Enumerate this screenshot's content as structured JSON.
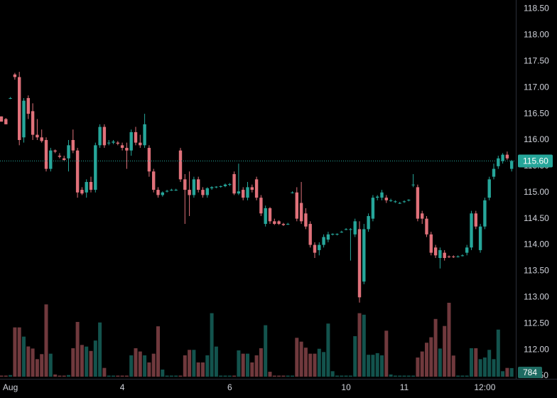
{
  "chart_data": {
    "type": "candlestick",
    "categories": [
      null,
      null,
      "Aug",
      null,
      null,
      null,
      null,
      null,
      null,
      null,
      null,
      null,
      null,
      null,
      null,
      null,
      null,
      null,
      null,
      null,
      null,
      null,
      null,
      null,
      null,
      null,
      null,
      "4",
      null,
      null,
      null,
      null,
      null,
      null,
      null,
      null,
      null,
      null,
      null,
      null,
      null,
      null,
      null,
      null,
      null,
      null,
      null,
      null,
      null,
      null,
      null,
      "6",
      null,
      null,
      null,
      null,
      null,
      null,
      null,
      null,
      null,
      null,
      null,
      null,
      null,
      null,
      null,
      null,
      null,
      null,
      null,
      null,
      null,
      null,
      null,
      null,
      null,
      "10",
      null,
      null,
      null,
      null,
      null,
      null,
      null,
      null,
      null,
      null,
      null,
      null,
      "11",
      null,
      null,
      null,
      null,
      null,
      null,
      null,
      null,
      null,
      null,
      null,
      null,
      null,
      null,
      null,
      null,
      null,
      "12:00",
      null,
      null,
      null,
      null,
      null,
      null
    ],
    "open": [
      116.45,
      116.4,
      116.8,
      117.25,
      117.2,
      116.05,
      116.8,
      116.55,
      116.1,
      116.05,
      116.0,
      115.45,
      115.8,
      115.7,
      115.65,
      115.65,
      116.0,
      115.8,
      115.05,
      115.0,
      115.2,
      115.05,
      115.9,
      116.25,
      115.95,
      115.95,
      115.95,
      115.9,
      115.85,
      115.8,
      116.15,
      115.95,
      115.9,
      115.85,
      115.4,
      115.05,
      114.95,
      115.02,
      115.05,
      115.05,
      115.8,
      115.25,
      115.05,
      114.95,
      115.25,
      115.05,
      114.95,
      115.08,
      115.1,
      115.11,
      115.12,
      115.15,
      115.35,
      114.98,
      115.05,
      114.9,
      115.1,
      115.25,
      114.9,
      114.4,
      114.7,
      114.45,
      114.45,
      114.4,
      114.4,
      115.0,
      115.0,
      114.8,
      114.6,
      114.4,
      114.0,
      113.9,
      114.0,
      114.1,
      114.2,
      114.2,
      114.25,
      114.3,
      114.3,
      114.2,
      114.3,
      113.3,
      114.3,
      114.5,
      114.9,
      114.9,
      114.9,
      114.85,
      114.82,
      114.8,
      114.82,
      114.85,
      115.15,
      115.1,
      114.6,
      114.5,
      114.2,
      113.95,
      113.75,
      113.85,
      113.78,
      113.78,
      113.78,
      113.8,
      113.85,
      113.95,
      114.6,
      113.9,
      114.35,
      114.9,
      115.3,
      115.5,
      115.6,
      115.72,
      115.45
    ],
    "high": [
      116.45,
      116.42,
      116.82,
      117.28,
      117.3,
      116.8,
      116.85,
      116.7,
      116.4,
      116.2,
      116.05,
      115.85,
      115.82,
      115.75,
      115.7,
      116.0,
      116.2,
      115.85,
      115.1,
      115.25,
      115.3,
      115.95,
      116.3,
      116.3,
      116.0,
      116.0,
      115.98,
      115.95,
      115.95,
      116.2,
      116.25,
      116.1,
      116.5,
      115.9,
      115.45,
      115.1,
      115.02,
      115.05,
      115.07,
      115.07,
      115.85,
      115.35,
      115.4,
      115.3,
      115.3,
      115.1,
      115.1,
      115.12,
      115.12,
      115.13,
      115.17,
      115.18,
      115.4,
      115.55,
      115.1,
      115.2,
      115.15,
      115.3,
      114.95,
      114.75,
      114.72,
      114.5,
      114.47,
      114.42,
      114.42,
      115.02,
      115.1,
      115.2,
      114.7,
      114.45,
      114.05,
      114.05,
      114.2,
      114.25,
      114.22,
      114.22,
      114.27,
      114.32,
      114.32,
      114.5,
      114.45,
      114.4,
      114.6,
      114.95,
      114.95,
      115.05,
      114.95,
      114.88,
      114.85,
      114.82,
      114.85,
      114.87,
      115.35,
      115.15,
      114.65,
      114.55,
      114.25,
      114.0,
      113.95,
      113.9,
      113.8,
      113.8,
      113.8,
      113.82,
      114.0,
      114.65,
      114.65,
      114.4,
      114.9,
      115.3,
      115.55,
      115.7,
      115.75,
      115.78,
      115.62
    ],
    "low": [
      116.35,
      116.3,
      116.78,
      117.15,
      115.9,
      115.95,
      116.4,
      116.0,
      116.0,
      115.95,
      115.4,
      115.4,
      115.75,
      115.65,
      115.6,
      115.4,
      115.75,
      114.9,
      114.95,
      114.9,
      115.0,
      115.0,
      115.85,
      115.85,
      115.9,
      115.92,
      115.9,
      115.8,
      115.45,
      115.7,
      115.9,
      115.85,
      115.85,
      115.3,
      115.0,
      114.9,
      114.92,
      115.0,
      115.03,
      115.03,
      115.2,
      114.4,
      114.55,
      114.9,
      115.0,
      114.9,
      114.9,
      115.05,
      115.08,
      115.09,
      115.1,
      115.12,
      114.95,
      114.95,
      114.85,
      114.85,
      115.0,
      114.85,
      114.55,
      114.35,
      114.4,
      114.38,
      114.38,
      114.36,
      114.38,
      114.98,
      114.45,
      114.4,
      114.3,
      113.95,
      113.75,
      113.8,
      113.95,
      114.05,
      114.18,
      114.18,
      114.23,
      114.28,
      113.7,
      114.15,
      112.9,
      113.25,
      114.25,
      114.45,
      114.85,
      114.85,
      114.8,
      114.82,
      114.8,
      114.78,
      114.8,
      114.83,
      115.1,
      114.45,
      114.4,
      114.15,
      113.8,
      113.75,
      113.55,
      113.7,
      113.75,
      113.75,
      113.76,
      113.78,
      113.8,
      113.9,
      114.3,
      113.85,
      114.3,
      114.85,
      115.25,
      115.45,
      115.55,
      115.62,
      115.4
    ],
    "close": [
      116.35,
      116.3,
      116.8,
      117.2,
      116.0,
      116.75,
      116.5,
      116.1,
      116.05,
      115.98,
      115.45,
      115.8,
      115.78,
      115.68,
      115.62,
      115.9,
      115.8,
      115.0,
      114.98,
      115.2,
      115.05,
      115.9,
      116.25,
      115.9,
      115.95,
      115.97,
      115.93,
      115.85,
      115.8,
      116.15,
      115.95,
      115.9,
      116.3,
      115.4,
      115.05,
      114.95,
      115.0,
      115.03,
      115.05,
      115.05,
      115.25,
      115.05,
      114.95,
      115.25,
      115.05,
      114.95,
      115.08,
      115.1,
      115.11,
      115.12,
      115.15,
      115.16,
      114.98,
      115.02,
      114.9,
      115.1,
      115.05,
      114.9,
      114.6,
      114.7,
      114.45,
      114.4,
      114.4,
      114.38,
      114.4,
      115.0,
      114.5,
      114.45,
      114.35,
      114.0,
      113.85,
      114.0,
      114.15,
      114.2,
      114.21,
      114.21,
      114.25,
      114.3,
      114.3,
      114.45,
      113.0,
      114.3,
      114.55,
      114.9,
      114.92,
      115.0,
      114.85,
      114.85,
      114.83,
      114.8,
      114.83,
      114.86,
      115.15,
      114.5,
      114.5,
      114.2,
      113.85,
      113.8,
      113.9,
      113.75,
      113.77,
      113.77,
      113.78,
      113.8,
      113.95,
      114.6,
      114.35,
      114.35,
      114.85,
      115.25,
      115.45,
      115.65,
      115.72,
      115.65,
      115.6
    ],
    "volume": [
      100,
      100,
      150,
      4500,
      4500,
      3660,
      2760,
      2570,
      1600,
      2060,
      6600,
      2100,
      200,
      100,
      100,
      150,
      2600,
      5000,
      2900,
      2750,
      2350,
      3300,
      4950,
      800,
      100,
      100,
      100,
      100,
      100,
      1950,
      2600,
      2300,
      1950,
      1300,
      2100,
      4600,
      650,
      100,
      100,
      100,
      100,
      1950,
      2450,
      2450,
      1300,
      1300,
      1950,
      5800,
      2750,
      100,
      100,
      100,
      100,
      2400,
      2100,
      2100,
      1300,
      1950,
      2600,
      4700,
      450,
      100,
      100,
      100,
      100,
      100,
      3550,
      3200,
      2650,
      2100,
      2100,
      2550,
      2250,
      4850,
      500,
      100,
      100,
      100,
      100,
      3700,
      5800,
      5660,
      2000,
      2000,
      2150,
      1950,
      4200,
      200,
      100,
      100,
      100,
      100,
      100,
      1750,
      2300,
      3100,
      3600,
      5270,
      2570,
      4630,
      6750,
      1930,
      100,
      100,
      100,
      2600,
      2600,
      1600,
      1750,
      2450,
      1600,
      4300,
      500,
      800,
      784
    ],
    "up_color": "#26a69a",
    "down_color": "#e0717a",
    "ylim": [
      111.08,
      118.67
    ],
    "yticks": [
      {
        "value": 111.5,
        "label": "111.50"
      },
      {
        "value": 112,
        "label": "112.00"
      },
      {
        "value": 112.5,
        "label": "112.50"
      },
      {
        "value": 113,
        "label": "113.00"
      },
      {
        "value": 113.5,
        "label": "113.50"
      },
      {
        "value": 114,
        "label": "114.00"
      },
      {
        "value": 114.5,
        "label": "114.50"
      },
      {
        "value": 115,
        "label": "115.00"
      },
      {
        "value": 115.5,
        "label": "115.50"
      },
      {
        "value": 116,
        "label": "116.00"
      },
      {
        "value": 116.5,
        "label": "116.50"
      },
      {
        "value": 117,
        "label": "117.00"
      },
      {
        "value": 117.5,
        "label": "117.50"
      },
      {
        "value": 118,
        "label": "118.00"
      },
      {
        "value": 118.5,
        "label": "118.50"
      }
    ],
    "last_price": {
      "value": 115.6,
      "label": "115.60"
    }
  }
}
